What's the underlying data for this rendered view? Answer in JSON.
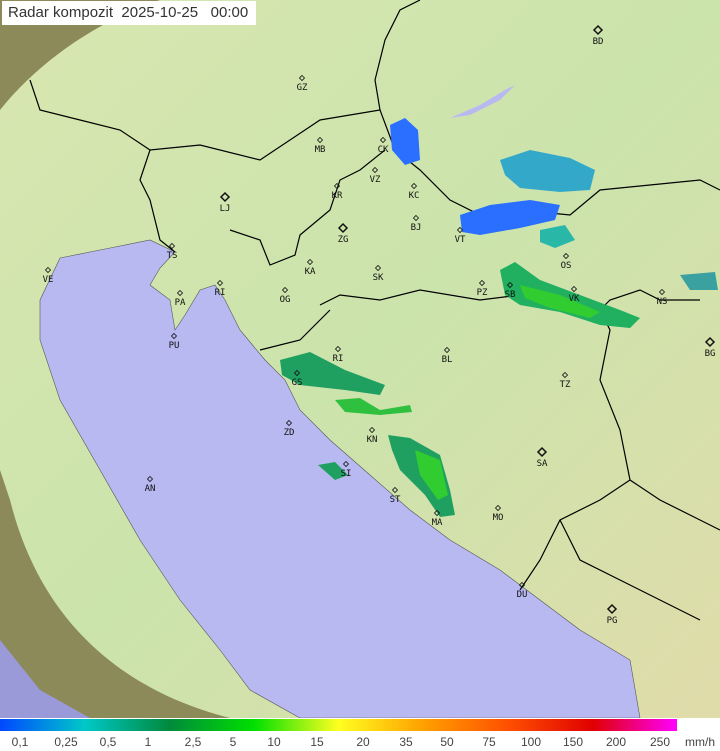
{
  "header": {
    "title": "Radar kompozit",
    "date": "2025-10-25",
    "time": "00:00"
  },
  "map": {
    "colors": {
      "land": "#c9e3a8",
      "sea": "#b9b9f2",
      "out_of_range": "#8e8a55",
      "border": "#000000"
    },
    "cities": [
      "BD",
      "GZ",
      "MB",
      "CK",
      "VZ",
      "KR",
      "KC",
      "LJ",
      "BJ",
      "VT",
      "ZG",
      "TS",
      "VE",
      "KA",
      "SK",
      "RI",
      "PA",
      "OG",
      "PZ",
      "SB",
      "OS",
      "VK",
      "NS",
      "PU",
      "BG",
      "RI",
      "BL",
      "GS",
      "TZ",
      "ZD",
      "KN",
      "SA",
      "SI",
      "AN",
      "ST",
      "MO",
      "MA",
      "DU",
      "PG"
    ]
  },
  "legend": {
    "unit": "mm/h",
    "labels": [
      "0,1",
      "0,25",
      "0,5",
      "1",
      "2,5",
      "5",
      "10",
      "15",
      "20",
      "35",
      "50",
      "75",
      "100",
      "150",
      "200",
      "250"
    ],
    "colors": [
      "#0048ff",
      "#00c8c8",
      "#008a3c",
      "#00e000",
      "#ffff20",
      "#ffa000",
      "#ff5000",
      "#e00000",
      "#ff00ff"
    ]
  }
}
